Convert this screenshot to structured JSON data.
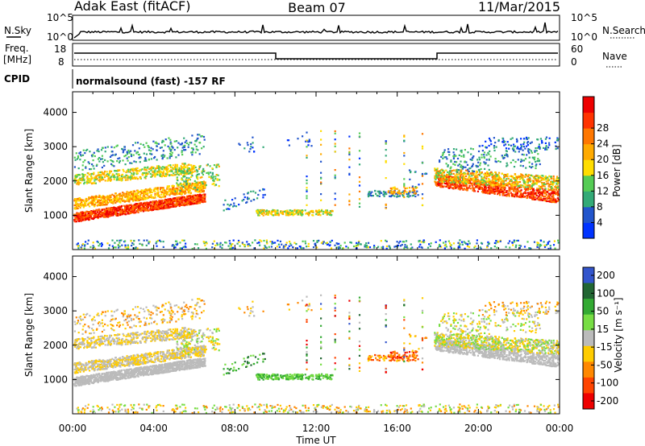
{
  "header": {
    "station": "Adak East (fitACF)",
    "beam": "Beam 07",
    "date": "11/Mar/2015"
  },
  "noise_panel": {
    "left_label": "N.Sky",
    "right_label": "N.Search",
    "left_ticks": [
      "10^5",
      "10^0"
    ],
    "right_ticks": [
      "10^5",
      "10^0"
    ]
  },
  "freq_panel": {
    "left_label_line1": "Freq.",
    "left_label_line2": "[MHz]",
    "right_label": "Nave",
    "left_ticks": [
      "18",
      "8"
    ],
    "right_ticks": [
      "60",
      "0"
    ],
    "cpid_label": "CPID",
    "cpid_text": "normalsound (fast) -157 RF"
  },
  "colors": {
    "power_scale": [
      "#0033ff",
      "#2255cc",
      "#33aa77",
      "#55cc55",
      "#ffdd00",
      "#ffaa00",
      "#ff7700",
      "#ff3300",
      "#ee0000"
    ],
    "velocity_scale": [
      "#3355cc",
      "#226633",
      "#33aa33",
      "#77dd44",
      "#bbbbbb",
      "#ffcc00",
      "#ff8800",
      "#ff4400",
      "#ee0000"
    ]
  },
  "chart_data": [
    {
      "type": "heatmap",
      "name": "power",
      "ylabel": "Slant Range [km]",
      "ylim": [
        0,
        4600
      ],
      "yticks": [
        1000,
        2000,
        3000,
        4000
      ],
      "xticks": [
        "00:00",
        "04:00",
        "08:00",
        "12:00",
        "16:00",
        "20:00",
        "00:00"
      ],
      "colorbar_label": "Power [dB]",
      "colorbar_ticks": [
        "4",
        "8",
        "12",
        "16",
        "20",
        "24",
        "28"
      ],
      "colorbar_range": [
        0,
        32
      ]
    },
    {
      "type": "heatmap",
      "name": "velocity",
      "ylabel": "Slant Range [km]",
      "ylim": [
        0,
        4600
      ],
      "yticks": [
        1000,
        2000,
        3000,
        4000
      ],
      "xlabel": "Time UT",
      "xticks": [
        "00:00",
        "04:00",
        "08:00",
        "12:00",
        "16:00",
        "20:00",
        "00:00"
      ],
      "colorbar_label": "Velocity [m s⁻¹]",
      "colorbar_ticks": [
        "200",
        "100",
        "50",
        "15",
        "-15",
        "-50",
        "-100",
        "-200"
      ]
    }
  ]
}
